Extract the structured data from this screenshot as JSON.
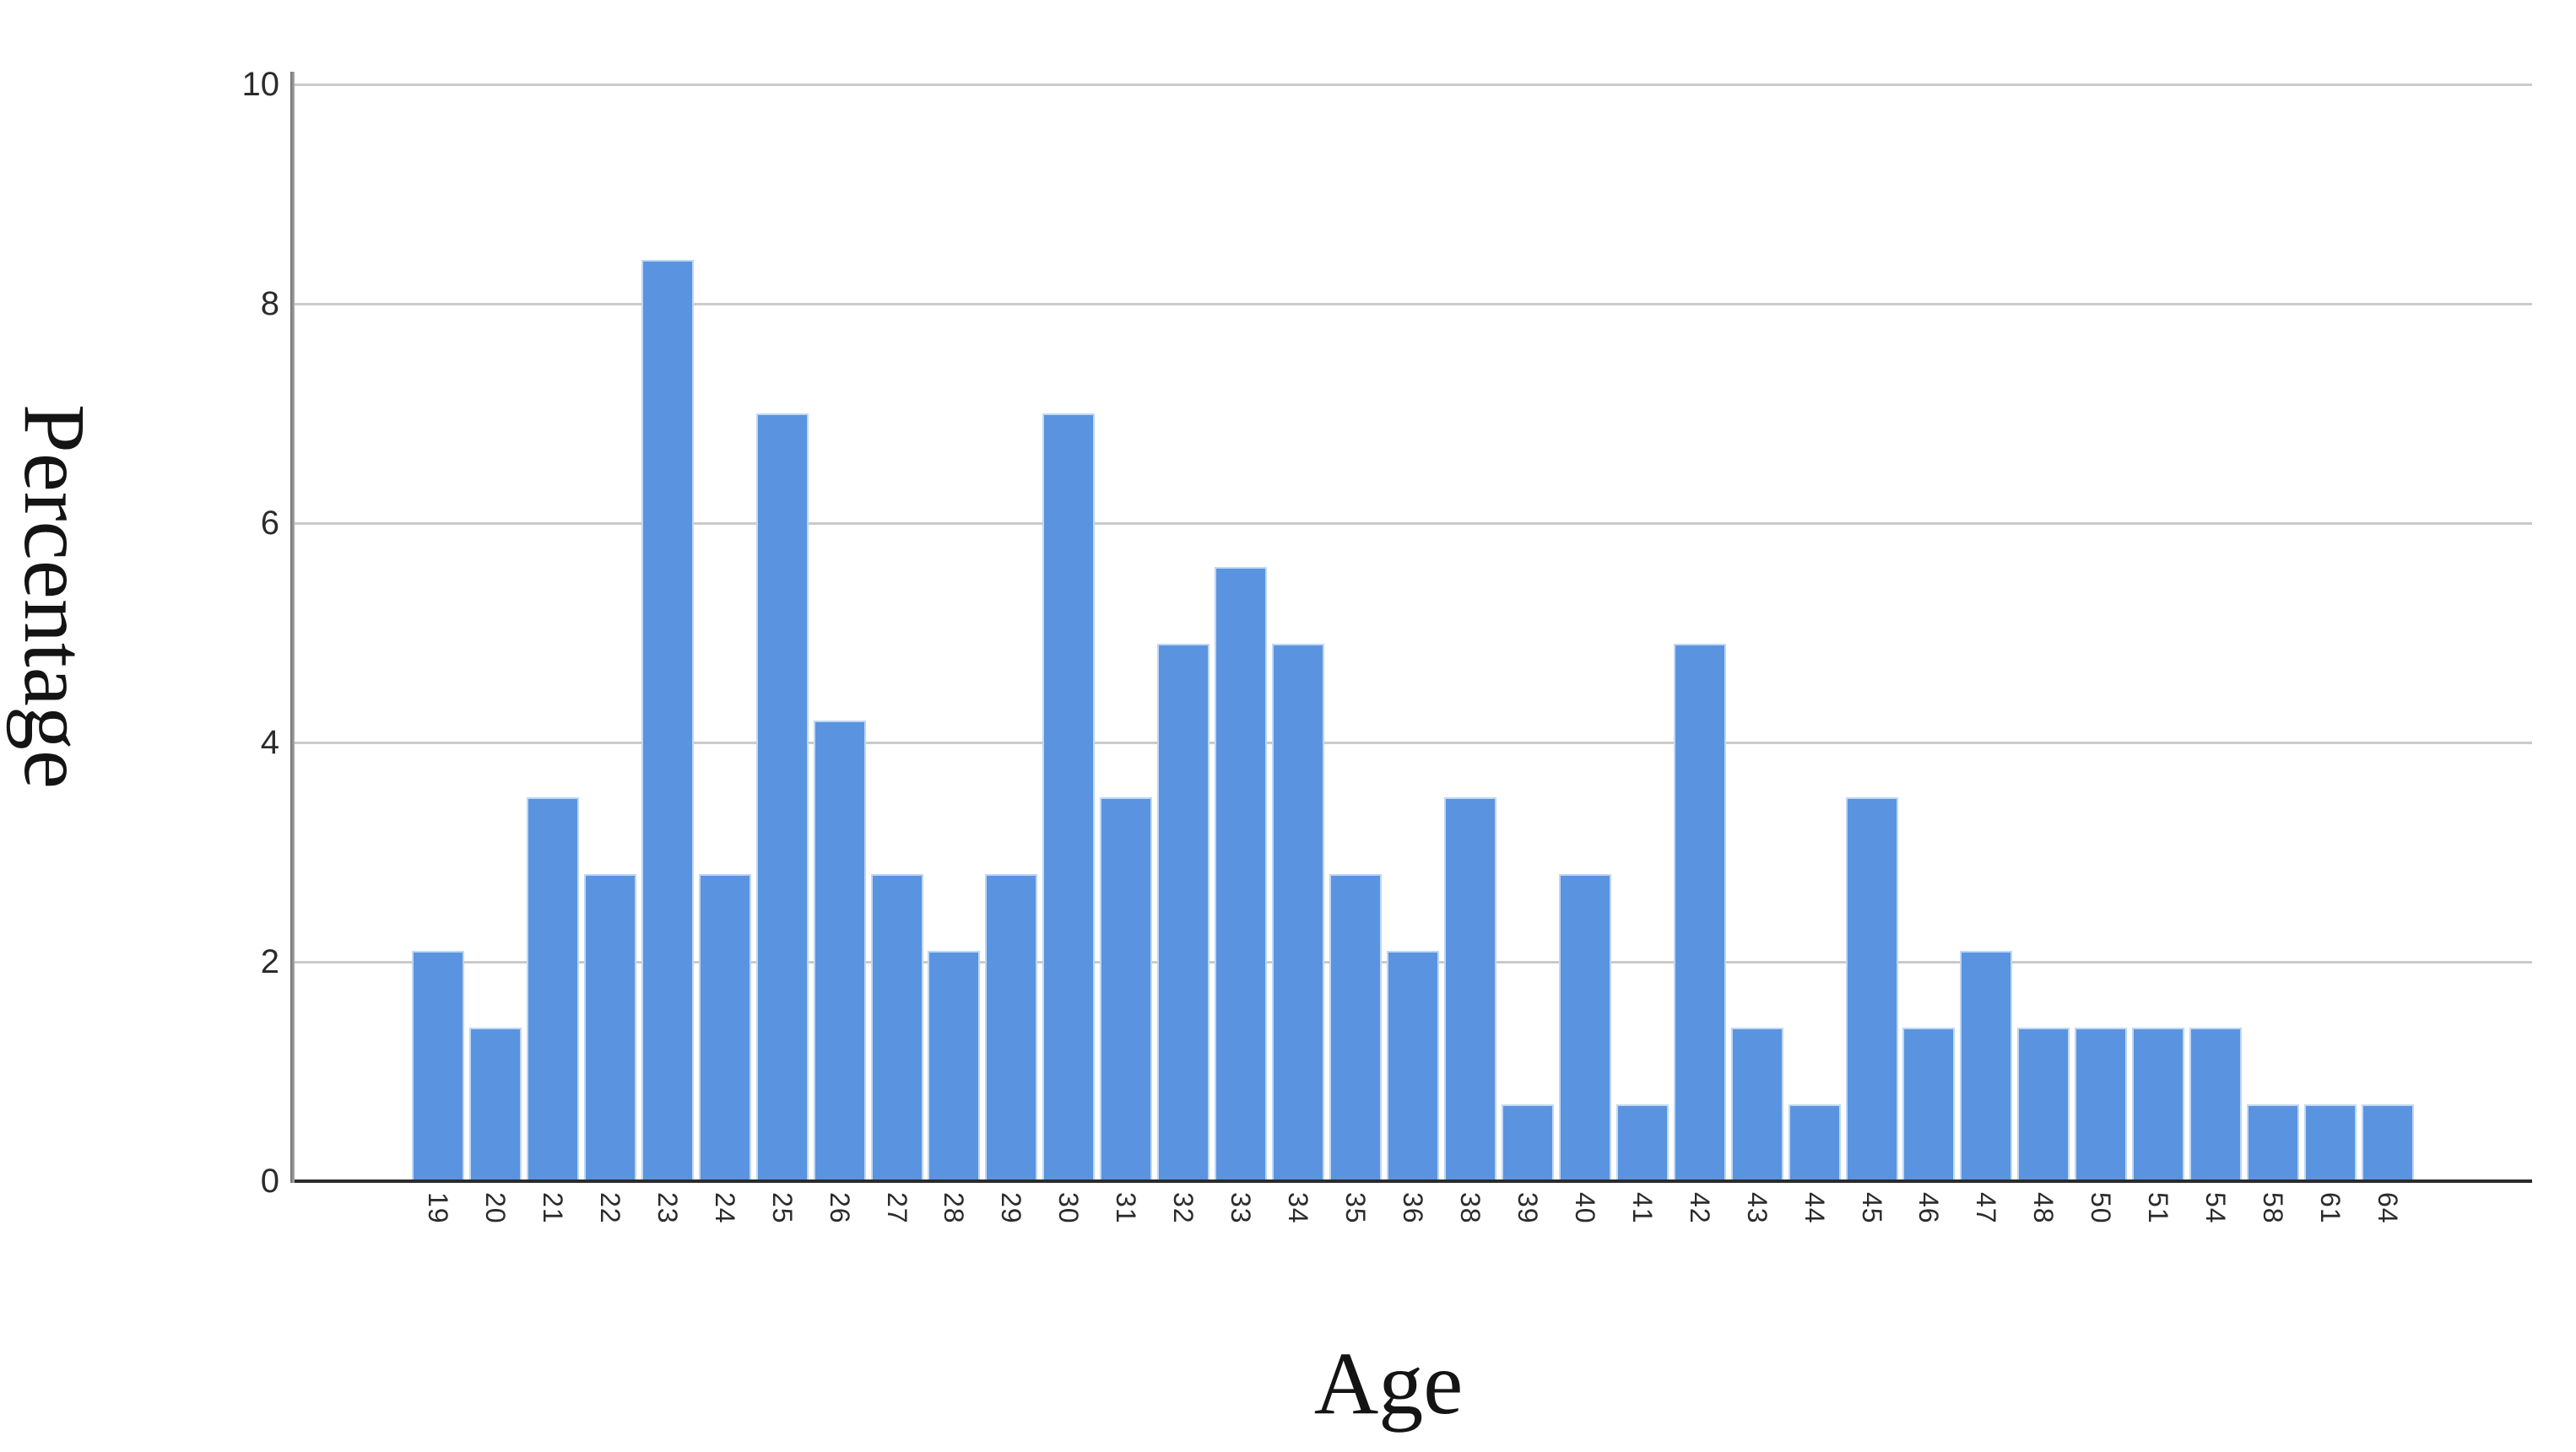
{
  "chart_data": {
    "type": "bar",
    "title": "",
    "xlabel": "Age",
    "ylabel": "Percentage",
    "categories": [
      "19",
      "20",
      "21",
      "22",
      "23",
      "24",
      "25",
      "26",
      "27",
      "28",
      "29",
      "30",
      "31",
      "32",
      "33",
      "34",
      "35",
      "36",
      "38",
      "39",
      "40",
      "41",
      "42",
      "43",
      "44",
      "45",
      "46",
      "47",
      "48",
      "50",
      "51",
      "54",
      "58",
      "61",
      "64"
    ],
    "values": [
      2.1,
      1.4,
      3.5,
      2.8,
      8.4,
      2.8,
      7.0,
      4.2,
      2.8,
      2.1,
      2.8,
      7.0,
      3.5,
      4.9,
      5.6,
      4.9,
      2.8,
      2.1,
      3.5,
      0.7,
      2.8,
      0.7,
      4.9,
      1.4,
      0.7,
      3.5,
      1.4,
      2.1,
      1.4,
      1.4,
      1.4,
      1.4,
      0.7,
      0.7,
      0.7
    ],
    "yticks": [
      0,
      2,
      4,
      6,
      8,
      10
    ],
    "ylim": [
      0,
      10.2
    ],
    "grid": "horizontal-only",
    "legend_position": "none",
    "bar_color": "#5A94E0",
    "bar_border_color": "#BFD7F5",
    "gridline_color": "#CACACA",
    "x_axis_color": "#2B2B2B",
    "tick_label_color": "#2B2B2B",
    "title_color": "#141414"
  }
}
